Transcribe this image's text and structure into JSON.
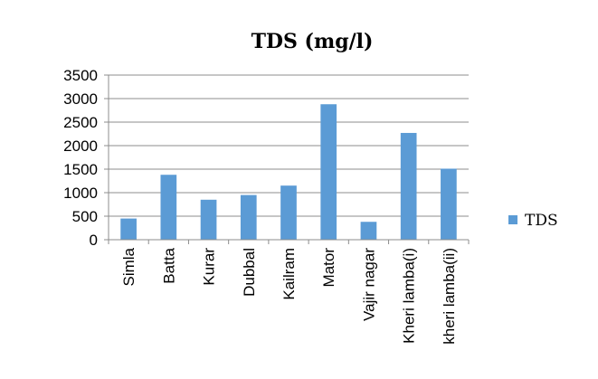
{
  "chart_data": {
    "type": "bar",
    "title": "TDS (mg/l)",
    "categories": [
      "Simla",
      "Batta",
      "Kurar",
      "Dubbal",
      "Kailram",
      "Mator",
      "Vajir nagar",
      "Kheri lamba(i)",
      "kheri lamba(ii)"
    ],
    "series": [
      {
        "name": "TDS",
        "values": [
          450,
          1380,
          850,
          950,
          1150,
          2880,
          380,
          2270,
          1510
        ]
      }
    ],
    "xlabel": "",
    "ylabel": "",
    "ylim": [
      0,
      3500
    ],
    "yticks": [
      "0",
      "500",
      "1000",
      "1500",
      "2000",
      "2500",
      "3000",
      "3500"
    ],
    "grid": true,
    "legend_position": "right",
    "bar_color": "#5b9bd5"
  }
}
